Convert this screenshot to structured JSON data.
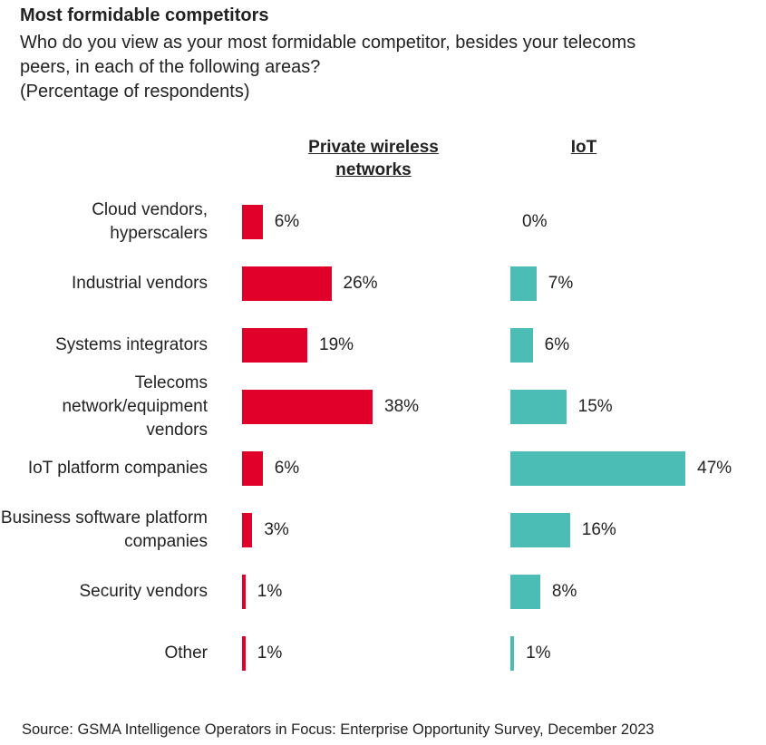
{
  "chart_data": {
    "type": "bar",
    "orientation": "horizontal",
    "title": "Most formidable competitors",
    "subtitle": "Who do you view as your most formidable competitor, besides your telecoms peers, in each of the following areas?",
    "note": "(Percentage of respondents)",
    "categories": [
      "Cloud vendors, hyperscalers",
      "Industrial vendors",
      "Systems integrators",
      "Telecoms network/equipment vendors",
      "IoT platform companies",
      "Business software platform companies",
      "Security vendors",
      "Other"
    ],
    "series": [
      {
        "name": "Private wireless networks",
        "color": "#e0002a",
        "values": [
          6,
          26,
          19,
          38,
          6,
          3,
          1,
          1
        ],
        "value_labels": [
          "6%",
          "26%",
          "19%",
          "38%",
          "6%",
          "3%",
          "1%",
          "1%"
        ]
      },
      {
        "name": "IoT",
        "color": "#4bbdb5",
        "values": [
          0,
          7,
          6,
          15,
          47,
          16,
          8,
          1
        ],
        "value_labels": [
          "0%",
          "7%",
          "6%",
          "15%",
          "47%",
          "16%",
          "8%",
          "1%"
        ]
      }
    ],
    "source": "Source: GSMA Intelligence Operators in Focus: Enterprise Opportunity Survey, December 2023"
  }
}
